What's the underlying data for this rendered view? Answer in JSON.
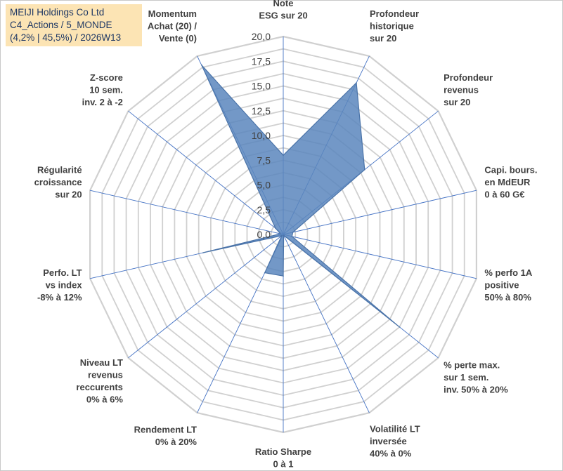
{
  "title": {
    "line1": "MEIJI Holdings Co Ltd",
    "line2": "C4_Actions / 5_MONDE",
    "line3": "(4,2% | 45,5%) / 2026W13"
  },
  "chart_data": {
    "type": "radar",
    "title": "MEIJI Holdings Co Ltd C4_Actions / 5_MONDE (4,2% | 45,5%) / 2026W13",
    "rlim": [
      0,
      20
    ],
    "ticks": [
      "0,0",
      "2,5",
      "5,0",
      "7,5",
      "10,0",
      "12,5",
      "15,0",
      "17,5",
      "20,0"
    ],
    "tick_values": [
      0,
      2.5,
      5,
      7.5,
      10,
      12.5,
      15,
      17.5,
      20
    ],
    "grid_levels": 16,
    "categories": [
      [
        "Note",
        "ESG sur 20"
      ],
      [
        "Profondeur",
        "historique",
        "sur 20"
      ],
      [
        "Profondeur",
        "revenus",
        "sur 20"
      ],
      [
        "Capi. bours.",
        "en MdEUR",
        "0 à 60 G€"
      ],
      [
        "% perfo 1A",
        "positive",
        "50% à 80%"
      ],
      [
        "% perte max.",
        "sur 1 sem.",
        "inv. 50% à 20%"
      ],
      [
        "Volatilité LT",
        "inversée",
        "40% à 0%"
      ],
      [
        "Ratio Sharpe",
        "0 à 1"
      ],
      [
        "Rendement LT",
        "0% à 20%"
      ],
      [
        "Niveau LT",
        "revenus",
        "reccurents",
        "0% à 6%"
      ],
      [
        "Perfo. LT",
        "vs index",
        "-8% à 12%"
      ],
      [
        "Régularité",
        "croissance",
        "sur 20"
      ],
      [
        "Z-score",
        "10 sem.",
        "inv. 2 à -2"
      ],
      [
        "Momentum",
        "Achat (20) /",
        "Vente (0)"
      ]
    ],
    "series": [
      {
        "name": "MEIJI Holdings Co Ltd",
        "color": "#5b86bd",
        "values": [
          8.0,
          17.0,
          10.5,
          1.0,
          0.9,
          15.0,
          0.1,
          4.2,
          4.3,
          0.2,
          8.3,
          0.3,
          1.0,
          19.0
        ]
      }
    ]
  },
  "colors": {
    "grid": "#d0d0d0",
    "spoke": "#4472c4",
    "fill": "#5b86bd",
    "stroke": "#4a73a8",
    "title_bg": "#fce4b4"
  }
}
